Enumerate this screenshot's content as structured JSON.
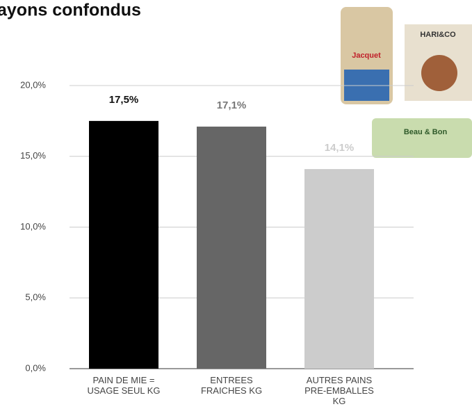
{
  "chart_data": {
    "type": "bar",
    "title": "ayons confondus",
    "categories": [
      "PAIN DE MIE =\nUSAGE SEUL KG",
      "ENTREES\nFRAICHES KG",
      "AUTRES PAINS\nPRE-EMBALLES\nKG"
    ],
    "values": [
      17.5,
      17.1,
      14.1
    ],
    "value_labels": [
      "17,5%",
      "17,1%",
      "14,1%"
    ],
    "colors": [
      "#000000",
      "#666666",
      "#cccccc"
    ],
    "label_colors": [
      "#111111",
      "#777777",
      "#cccccc"
    ],
    "ylim": [
      0,
      20
    ],
    "yticks": [
      {
        "value": 0,
        "label": "0,0%"
      },
      {
        "value": 5,
        "label": "5,0%"
      },
      {
        "value": 10,
        "label": "10,0%"
      },
      {
        "value": 15,
        "label": "15,0%"
      },
      {
        "value": 20,
        "label": "20,0%"
      }
    ],
    "grid": true,
    "annotations": [
      "Jacquet",
      "HARI&CO",
      "Beau & Bon"
    ]
  }
}
